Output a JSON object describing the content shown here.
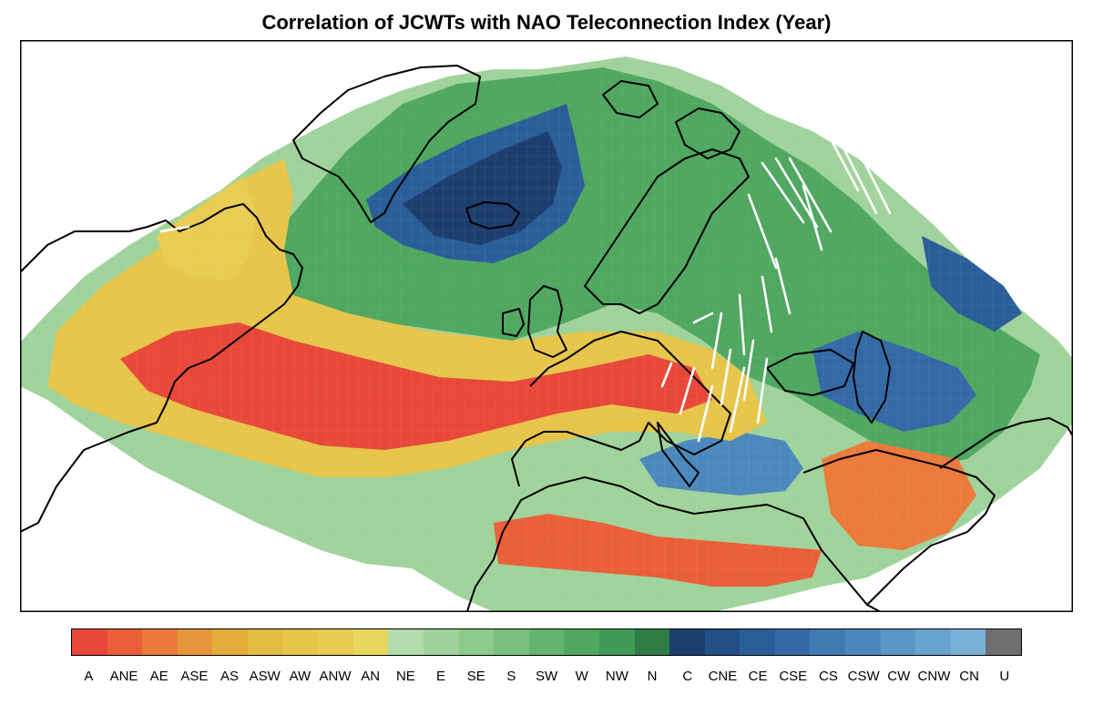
{
  "title": "Correlation of JCWTs with NAO Teleconnection Index (Year)",
  "legend": {
    "categories": [
      {
        "label": "A",
        "color": "#e8483a"
      },
      {
        "label": "ANE",
        "color": "#ea5f38"
      },
      {
        "label": "AE",
        "color": "#eb7a3b"
      },
      {
        "label": "ASE",
        "color": "#e8963b"
      },
      {
        "label": "AS",
        "color": "#e3ad3c"
      },
      {
        "label": "ASW",
        "color": "#e4bb42"
      },
      {
        "label": "AW",
        "color": "#e6c54a"
      },
      {
        "label": "ANW",
        "color": "#e8cc53"
      },
      {
        "label": "AN",
        "color": "#e9d65f"
      },
      {
        "label": "NE",
        "color": "#b3dcac"
      },
      {
        "label": "E",
        "color": "#a0d39b"
      },
      {
        "label": "SE",
        "color": "#8ccb8a"
      },
      {
        "label": "S",
        "color": "#78c07b"
      },
      {
        "label": "SW",
        "color": "#63b46c"
      },
      {
        "label": "W",
        "color": "#4fa760"
      },
      {
        "label": "NW",
        "color": "#3e9a55"
      },
      {
        "label": "N",
        "color": "#2e7d45"
      },
      {
        "label": "C",
        "color": "#1d3d6e"
      },
      {
        "label": "CNE",
        "color": "#214f86"
      },
      {
        "label": "CE",
        "color": "#2a5e98"
      },
      {
        "label": "CSE",
        "color": "#3469a6"
      },
      {
        "label": "CS",
        "color": "#3f7ab3"
      },
      {
        "label": "CSW",
        "color": "#4b89bd"
      },
      {
        "label": "CW",
        "color": "#5997c6"
      },
      {
        "label": "CNW",
        "color": "#67a3cd"
      },
      {
        "label": "CN",
        "color": "#79b1d7"
      },
      {
        "label": "U",
        "color": "#6e6e6e"
      }
    ]
  }
}
